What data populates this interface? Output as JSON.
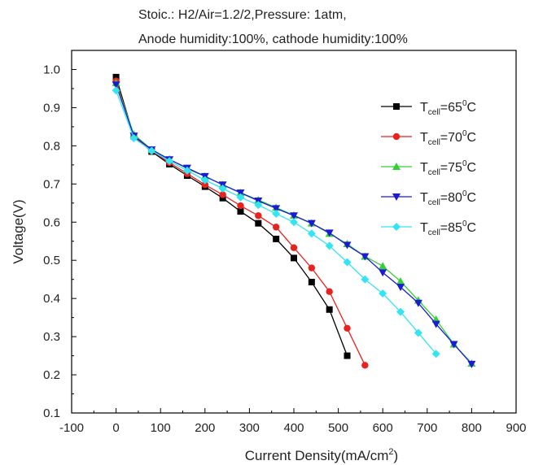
{
  "chart_data": {
    "type": "line",
    "title_lines": [
      "Stoic.: H2/Air=1.2/2,Pressure: 1atm,",
      "Anode humidity:100%, cathode humidity:100%"
    ],
    "xlabel": "Current Density(mA/cm",
    "xlabel_sup": "2",
    "xlabel_end": ")",
    "ylabel": "Voltage(V)",
    "xlim": [
      -100,
      900
    ],
    "ylim": [
      0.1,
      1.05
    ],
    "xticks": [
      -100,
      0,
      100,
      200,
      300,
      400,
      500,
      600,
      700,
      800,
      900
    ],
    "yticks": [
      "0.1",
      "0.2",
      "0.3",
      "0.4",
      "0.5",
      "0.6",
      "0.7",
      "0.8",
      "0.9",
      "1.0"
    ],
    "grid": false,
    "legend_position": "top-right",
    "series": [
      {
        "legend_main": "T",
        "legend_sub": "cell",
        "legend_value": "=65",
        "legend_sup": "0",
        "legend_unit": "C",
        "color": "#000000",
        "marker": "square",
        "x": [
          0,
          40,
          80,
          120,
          160,
          200,
          240,
          280,
          320,
          360,
          400,
          440,
          480,
          520
        ],
        "y": [
          0.98,
          0.825,
          0.785,
          0.752,
          0.722,
          0.693,
          0.663,
          0.628,
          0.597,
          0.556,
          0.506,
          0.443,
          0.371,
          0.25
        ]
      },
      {
        "legend_main": "T",
        "legend_sub": "cell",
        "legend_value": "=70",
        "legend_sup": "0",
        "legend_unit": "C",
        "color": "#e8231f",
        "marker": "circle",
        "x": [
          0,
          40,
          80,
          120,
          160,
          200,
          240,
          280,
          320,
          360,
          400,
          440,
          480,
          520,
          560
        ],
        "y": [
          0.97,
          0.825,
          0.787,
          0.756,
          0.727,
          0.698,
          0.672,
          0.643,
          0.617,
          0.587,
          0.533,
          0.48,
          0.418,
          0.322,
          0.225
        ]
      },
      {
        "legend_main": "T",
        "legend_sub": "cell",
        "legend_value": "=75",
        "legend_sup": "0",
        "legend_unit": "C",
        "color": "#33d133",
        "marker": "triangle-up",
        "x": [
          0,
          40,
          80,
          120,
          160,
          200,
          240,
          280,
          320,
          360,
          400,
          440,
          480,
          520,
          560,
          600,
          640,
          680,
          720,
          760,
          800
        ],
        "y": [
          0.965,
          0.83,
          0.79,
          0.765,
          0.74,
          0.72,
          0.698,
          0.677,
          0.658,
          0.638,
          0.618,
          0.597,
          0.57,
          0.543,
          0.51,
          0.485,
          0.445,
          0.395,
          0.345,
          0.28,
          0.23
        ]
      },
      {
        "legend_main": "T",
        "legend_sub": "cell",
        "legend_value": "=80",
        "legend_sup": "0",
        "legend_unit": "C",
        "color": "#1b1bd6",
        "marker": "triangle-down",
        "x": [
          0,
          40,
          80,
          120,
          160,
          200,
          240,
          280,
          320,
          360,
          400,
          440,
          480,
          520,
          560,
          600,
          640,
          680,
          720,
          760,
          800
        ],
        "y": [
          0.96,
          0.826,
          0.79,
          0.764,
          0.742,
          0.72,
          0.698,
          0.677,
          0.656,
          0.636,
          0.617,
          0.597,
          0.572,
          0.54,
          0.51,
          0.468,
          0.43,
          0.388,
          0.333,
          0.28,
          0.228
        ]
      },
      {
        "legend_main": "T",
        "legend_sub": "cell",
        "legend_value": "=85",
        "legend_sup": "0",
        "legend_unit": "C",
        "color": "#33e5f2",
        "marker": "diamond",
        "x": [
          0,
          40,
          80,
          120,
          160,
          200,
          240,
          280,
          320,
          360,
          400,
          440,
          480,
          520,
          560,
          600,
          640,
          680,
          720
        ],
        "y": [
          0.945,
          0.82,
          0.787,
          0.76,
          0.735,
          0.71,
          0.688,
          0.665,
          0.645,
          0.622,
          0.6,
          0.57,
          0.538,
          0.495,
          0.45,
          0.413,
          0.365,
          0.31,
          0.255
        ]
      }
    ]
  }
}
